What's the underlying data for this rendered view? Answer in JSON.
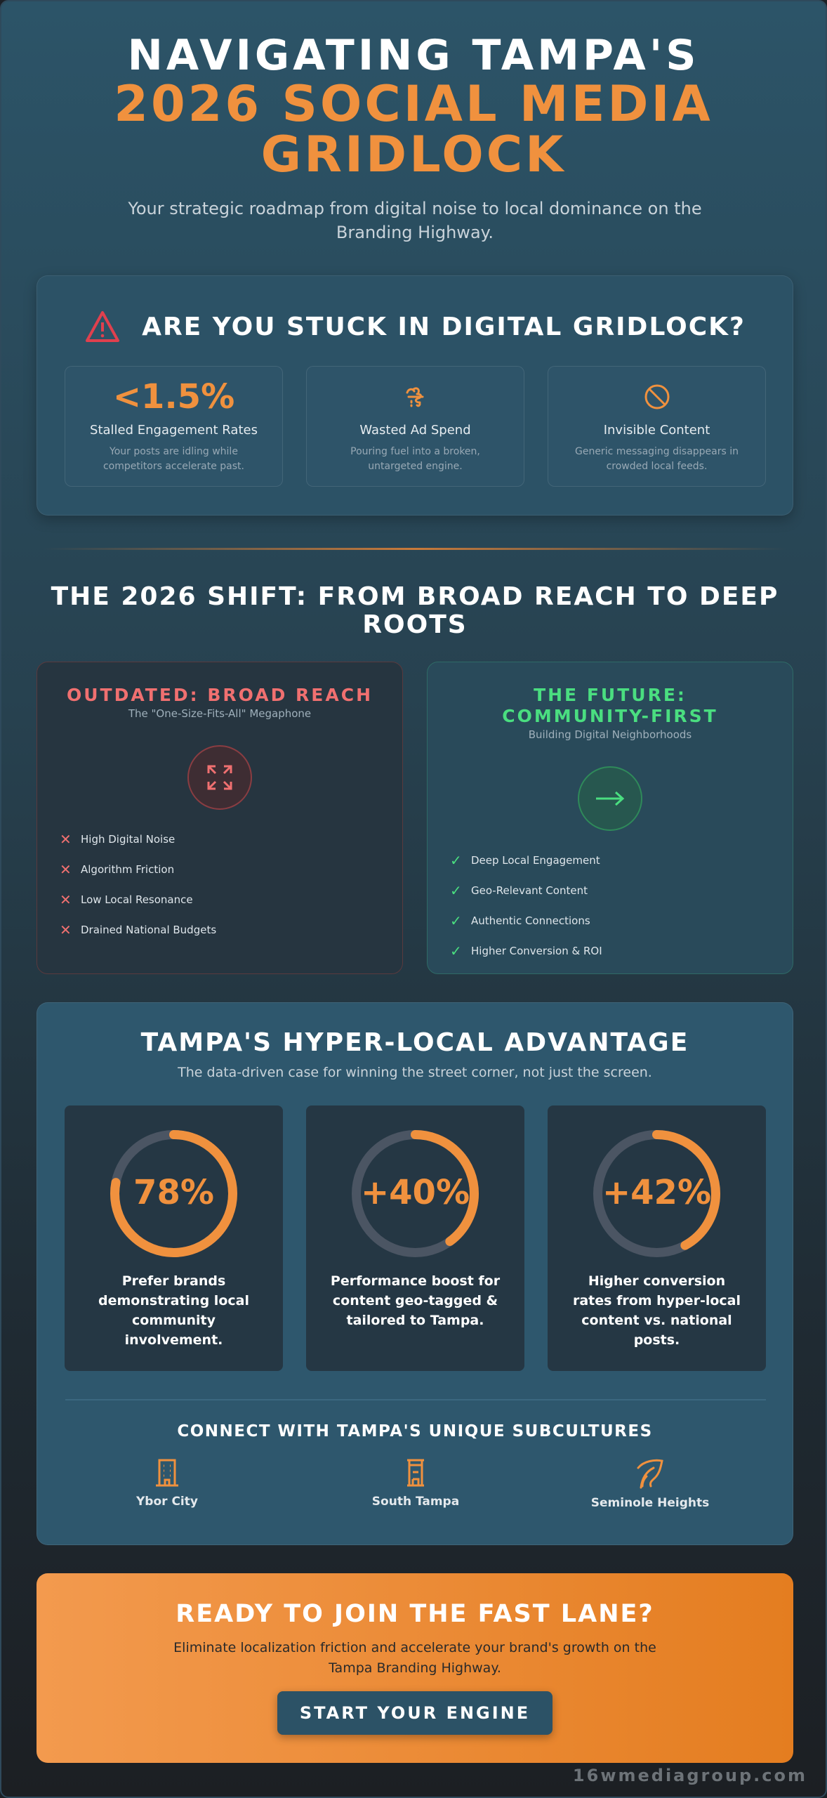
{
  "header": {
    "title_line1": "NAVIGATING TAMPA'S",
    "title_line2": "2026 SOCIAL MEDIA",
    "title_line3": "GRIDLOCK",
    "subtitle": "Your strategic roadmap from digital noise to local dominance on the Branding Highway."
  },
  "gridlock": {
    "title": "ARE YOU STUCK IN DIGITAL GRIDLOCK?",
    "icon": "warning-triangle-icon",
    "stats": [
      {
        "value": "<1.5%",
        "label": "Stalled Engagement Rates",
        "desc": "Your posts are idling while competitors accelerate past."
      },
      {
        "icon": "money-burn-icon",
        "label": "Wasted Ad Spend",
        "desc": "Pouring fuel into a broken, untargeted engine."
      },
      {
        "icon": "ban-icon",
        "label": "Invisible Content",
        "desc": "Generic messaging disappears in crowded local feeds."
      }
    ]
  },
  "shift": {
    "title": "THE 2026 SHIFT: FROM BROAD REACH TO DEEP ROOTS",
    "old": {
      "title": "OUTDATED: BROAD REACH",
      "subtitle": "The \"One-Size-Fits-All\" Megaphone",
      "icon": "expand-arrows-icon",
      "items": [
        "High Digital Noise",
        "Algorithm Friction",
        "Low Local Resonance",
        "Drained National Budgets"
      ]
    },
    "new": {
      "title": "THE FUTURE: COMMUNITY-FIRST",
      "subtitle": "Building Digital Neighborhoods",
      "icon": "arrow-right-icon",
      "items": [
        "Deep Local Engagement",
        "Geo-Relevant Content",
        "Authentic Connections",
        "Higher Conversion & ROI"
      ]
    }
  },
  "hyperlocal": {
    "title": "TAMPA'S HYPER-LOCAL ADVANTAGE",
    "subtitle": "The data-driven case for winning the street corner, not just the screen.",
    "stats": [
      {
        "value": "78%",
        "fill_percent": 78,
        "desc": "Prefer brands demonstrating local community involvement."
      },
      {
        "value": "+40%",
        "fill_percent": 40,
        "desc": "Performance boost for content geo-tagged & tailored to Tampa."
      },
      {
        "value": "+42%",
        "fill_percent": 42,
        "desc": "Higher conversion rates from hyper-local content vs. national posts."
      }
    ],
    "subcultures_title": "CONNECT WITH TAMPA'S UNIQUE SUBCULTURES",
    "subcultures": [
      {
        "label": "Ybor City",
        "icon": "building-icon"
      },
      {
        "label": "South Tampa",
        "icon": "tower-icon"
      },
      {
        "label": "Seminole Heights",
        "icon": "leaf-icon"
      }
    ]
  },
  "cta": {
    "title": "READY TO JOIN THE FAST LANE?",
    "text": "Eliminate localization friction and accelerate your brand's growth on the Tampa Branding Highway.",
    "button": "START YOUR ENGINE"
  },
  "footer": {
    "brand": "16wmediagroup.com"
  },
  "colors": {
    "accent": "#f0913e",
    "danger": "#f07070",
    "success": "#4ade80",
    "card": "#2c5266",
    "ring_track": "#4b5563"
  }
}
